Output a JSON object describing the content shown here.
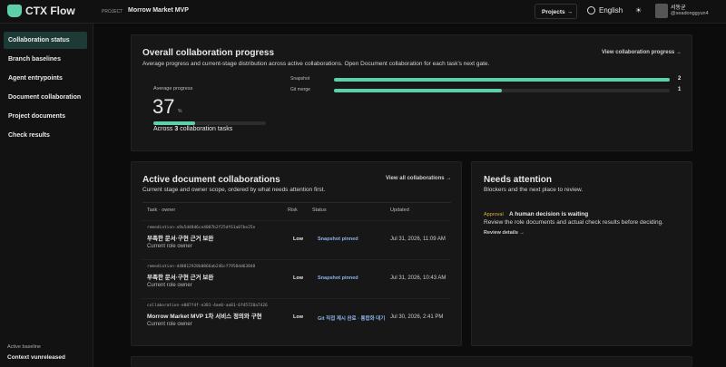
{
  "header": {
    "logo": "CTX Flow",
    "project_label": "PROJECT",
    "project_name": "Morrow Market MVP",
    "projects_button": "Projects →",
    "language": "English",
    "user_name": "서동균",
    "user_handle": "@seadonggyun4"
  },
  "sidebar": {
    "items": [
      "Collaboration status",
      "Branch baselines",
      "Agent entrypoints",
      "Document collaboration",
      "Project documents",
      "Check results"
    ],
    "active": 0,
    "footer_label": "Active baseline",
    "footer_value": "Context vunreleased"
  },
  "progress": {
    "title": "Overall collaboration progress",
    "subtitle": "Average progress and current-stage distribution across active collaborations. Open Document collaboration for each task's next gate.",
    "link": "View collaboration progress →",
    "average_label": "Average progress",
    "average": 37,
    "unit": "%",
    "tasks_prefix": "Across",
    "tasks_count": 3,
    "tasks_suffix": "collaboration tasks",
    "stages": [
      {
        "name": "Snapshot",
        "count": 2
      },
      {
        "name": "Git merge",
        "count": 1
      }
    ]
  },
  "collaborations": {
    "title": "Active document collaborations",
    "subtitle": "Current stage and owner scope, ordered by what needs attention first.",
    "link": "View all collaborations →",
    "columns": [
      "Task · owner",
      "Risk",
      "Status",
      "Updated"
    ],
    "rows": [
      {
        "id": "remediation-a9a5d48d6ce4007b2f25df61a07be25e",
        "name": "부족한 문서·구현 근거 보완",
        "owner": "Current role owner",
        "risk": "Low",
        "status": "Snapshot pinned",
        "updated": "Jul 31, 2026, 11:09 AM"
      },
      {
        "id": "remediation-d48012928b0866ab246cf7958dd63848",
        "name": "부족한 문서·구현 근거 보완",
        "owner": "Current role owner",
        "risk": "Low",
        "status": "Snapshot pinned",
        "updated": "Jul 31, 2026, 10:43 AM"
      },
      {
        "id": "collaboration-e087f4f-e381-4ae0-aa81-6f45728a7426",
        "name": "Morrow Market MVP 1차 서비스 정의와 구현",
        "owner": "Current role owner",
        "risk": "Low",
        "status": "Git 직접 제시 완료 · 통합화 대기",
        "updated": "Jul 30, 2026, 2:41 PM"
      }
    ]
  },
  "attention": {
    "title": "Needs attention",
    "subtitle": "Blockers and the next place to review.",
    "tag": "Approval",
    "headline": "A human decision is waiting",
    "body": "Review the role documents and actual check results before deciding.",
    "link": "Review details →"
  }
}
